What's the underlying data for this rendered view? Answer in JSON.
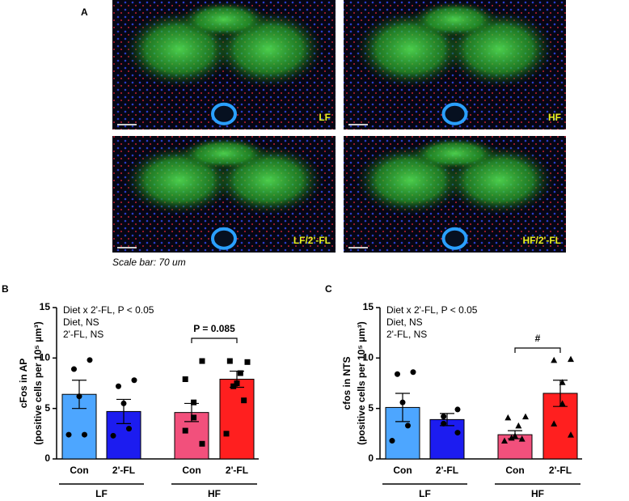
{
  "panel_a": {
    "label": "A",
    "images": [
      {
        "label": "LF"
      },
      {
        "label": "HF"
      },
      {
        "label": "LF/2'-FL"
      },
      {
        "label": "HF/2'-FL"
      }
    ],
    "caption": "Scale bar: 70 um"
  },
  "chart_data": [
    {
      "type": "bar",
      "label": "B",
      "ylabel": "cFos in AP",
      "ylabel_sub": "(positive cells per 10⁵ µm³)",
      "annotations": [
        "Diet x 2'-FL, P < 0.05",
        "Diet, NS",
        "2'-FL, NS"
      ],
      "significance": "P = 0.085",
      "categories": [
        "Con",
        "2'-FL",
        "Con",
        "2'-FL"
      ],
      "groups": [
        "LF",
        "HF"
      ],
      "values": [
        6.4,
        4.7,
        4.6,
        7.9
      ],
      "errors": [
        1.4,
        1.2,
        0.9,
        0.8
      ],
      "colors": [
        "#4da6ff",
        "#1c1cf0",
        "#f2507c",
        "#ff1f1f"
      ],
      "markers": [
        "circle",
        "circle",
        "square",
        "square"
      ],
      "points": [
        [
          9.8,
          8.9,
          6.2,
          2.4,
          2.4
        ],
        [
          7.8,
          7.2,
          5.5,
          3.0,
          2.3
        ],
        [
          9.7,
          7.9,
          5.6,
          4.1,
          2.8,
          1.5
        ],
        [
          9.6,
          9.7,
          8.5,
          7.5,
          7.2,
          5.8,
          2.5
        ]
      ],
      "ylim": [
        0,
        15
      ],
      "yticks": [
        0,
        5,
        10,
        15
      ]
    },
    {
      "type": "bar",
      "label": "C",
      "ylabel": "cfos in NTS",
      "ylabel_sub": "(positive cells per 10⁵ µm³)",
      "annotations": [
        "Diet x 2'-FL, P < 0.05",
        "Diet, NS",
        "2'-FL, NS"
      ],
      "significance": "#",
      "categories": [
        "Con",
        "2'-FL",
        "Con",
        "2'-FL"
      ],
      "groups": [
        "LF",
        "HF"
      ],
      "values": [
        5.1,
        3.9,
        2.4,
        6.5
      ],
      "errors": [
        1.4,
        0.6,
        0.4,
        1.3
      ],
      "colors": [
        "#4da6ff",
        "#1c1cf0",
        "#f2507c",
        "#ff1f1f"
      ],
      "markers": [
        "circle",
        "circle",
        "triangle",
        "triangle"
      ],
      "points": [
        [
          8.6,
          8.4,
          5.6,
          3.3,
          1.8
        ],
        [
          4.9,
          4.2,
          3.5,
          2.6
        ],
        [
          4.2,
          4.1,
          3.3,
          2.3,
          2.1,
          2.0,
          1.8
        ],
        [
          9.9,
          9.8,
          7.6,
          5.5,
          3.5,
          2.4
        ]
      ],
      "ylim": [
        0,
        15
      ],
      "yticks": [
        0,
        5,
        10,
        15
      ]
    }
  ]
}
